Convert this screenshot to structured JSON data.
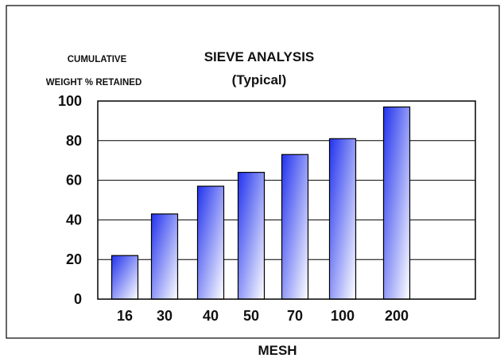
{
  "chart_data": {
    "type": "bar",
    "title": "SIEVE ANALYSIS",
    "subtitle": "(Typical)",
    "ylabel_line1": "CUMULATIVE",
    "ylabel_line2": "WEIGHT % RETAINED",
    "xlabel": "MESH",
    "categories": [
      "16",
      "30",
      "40",
      "50",
      "70",
      "100",
      "200"
    ],
    "values": [
      22,
      43,
      57,
      64,
      73,
      81,
      97
    ],
    "ylim": [
      0,
      100
    ],
    "yticks": [
      0,
      20,
      40,
      60,
      80,
      100
    ],
    "grid": true,
    "bar_gradient": [
      "#2233ee",
      "#ffffff"
    ],
    "bar_border": "#000000"
  }
}
